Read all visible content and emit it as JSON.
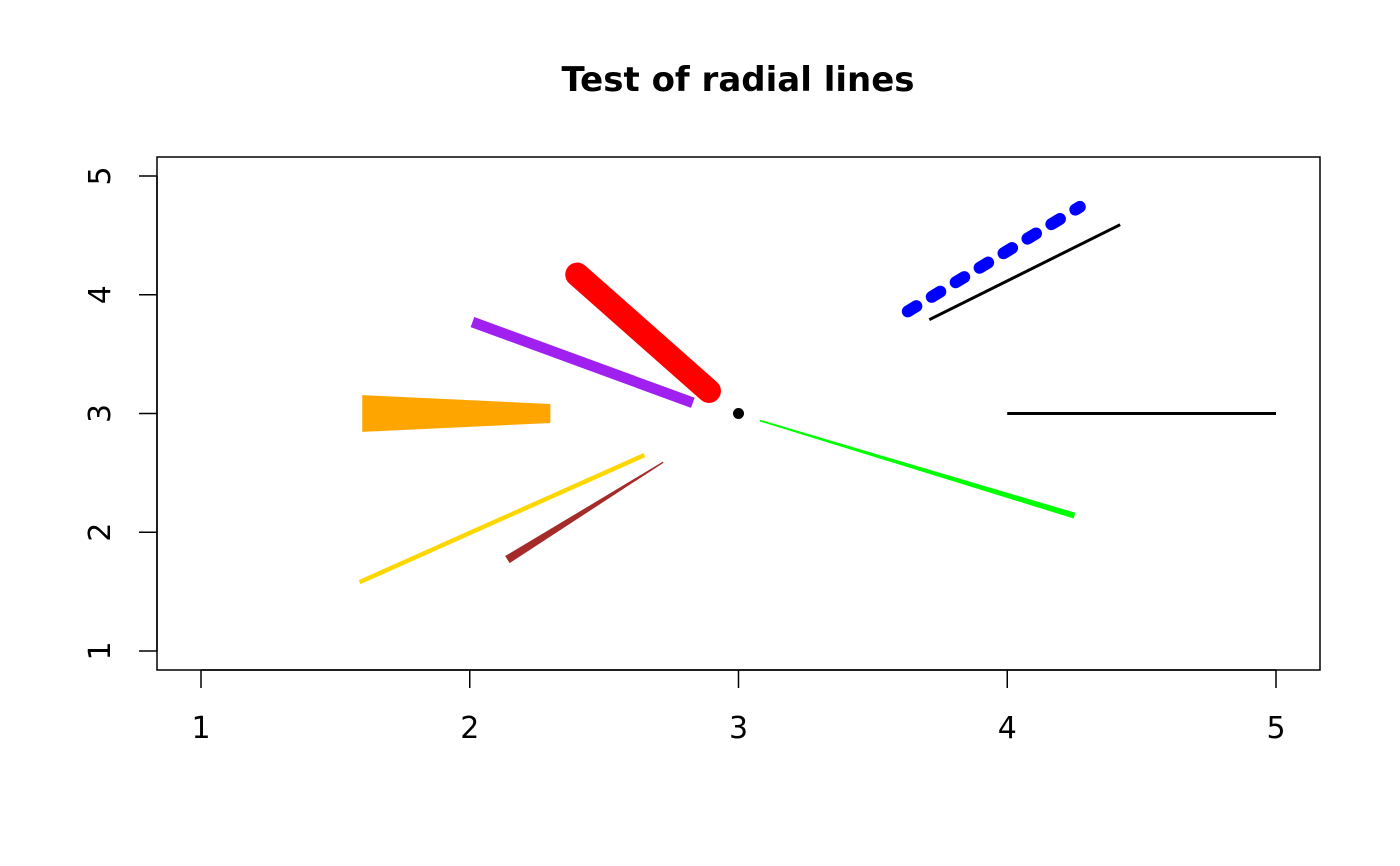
{
  "chart_data": {
    "type": "line",
    "title": "Test of radial lines",
    "xlabel": "",
    "ylabel": "",
    "xlim": [
      1,
      5
    ],
    "ylim": [
      1,
      5
    ],
    "x_ticks": [
      "1",
      "2",
      "3",
      "4",
      "5"
    ],
    "y_ticks": [
      "1",
      "2",
      "3",
      "4",
      "5"
    ],
    "grid": false,
    "legend": "none",
    "center_point": {
      "x": 3,
      "y": 3,
      "color": "#000000"
    },
    "series": [
      {
        "kind": "segment",
        "color": "#000000",
        "style": "solid",
        "width": 1,
        "x": [
          4,
          5
        ],
        "y": [
          3,
          3
        ]
      },
      {
        "kind": "segment",
        "color": "#000000",
        "style": "solid",
        "width": 1,
        "x": [
          3.71,
          4.42
        ],
        "y": [
          3.79,
          4.59
        ]
      },
      {
        "kind": "segment",
        "color": "#0000ff",
        "style": "dashed",
        "width": 4,
        "x": [
          3.63,
          4.27
        ],
        "y": [
          3.86,
          4.74
        ]
      },
      {
        "kind": "segment",
        "color": "#ff0000",
        "style": "solid",
        "width": 8,
        "x": [
          2.89,
          2.4
        ],
        "y": [
          3.19,
          4.17
        ]
      },
      {
        "kind": "wedge",
        "color": "#a020f0",
        "x": [
          2.83,
          2.01
        ],
        "y": [
          3.09,
          3.77
        ],
        "width_start": 0.09,
        "width_end": 0.09
      },
      {
        "kind": "wedge",
        "color": "#ffa500",
        "x": [
          2.3,
          1.6
        ],
        "y": [
          3.0,
          3.0
        ],
        "width_start": 0.16,
        "width_end": 0.31
      },
      {
        "kind": "segment",
        "color": "#ffd700",
        "style": "solid",
        "width": 1.5,
        "x": [
          2.65,
          1.59
        ],
        "y": [
          2.65,
          1.58
        ]
      },
      {
        "kind": "wedge",
        "color": "#a52a2a",
        "x": [
          2.72,
          2.14
        ],
        "y": [
          2.59,
          1.77
        ],
        "width_start": 0.01,
        "width_end": 0.07
      },
      {
        "kind": "wedge",
        "color": "#00ff00",
        "x": [
          3.08,
          4.25
        ],
        "y": [
          2.94,
          2.14
        ],
        "width_start": 0.015,
        "width_end": 0.05
      }
    ]
  }
}
